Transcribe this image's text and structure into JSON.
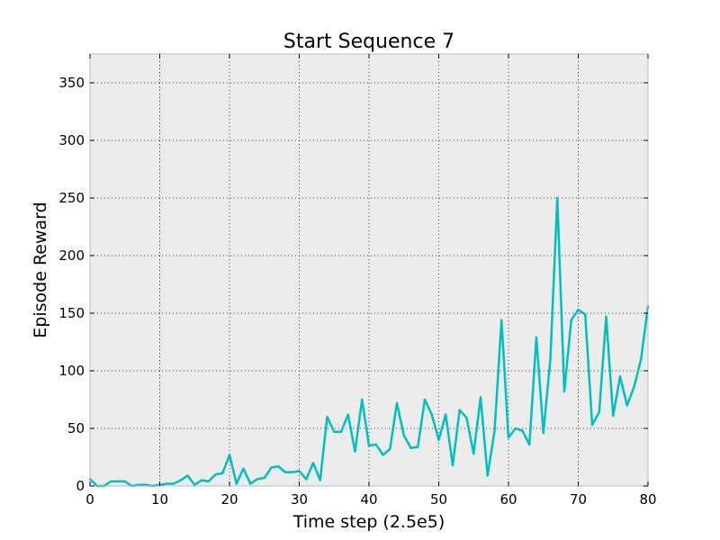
{
  "chart_data": {
    "type": "line",
    "title": "Start Sequence 7",
    "xlabel": "Time step (2.5e5)",
    "ylabel": "Episode Reward",
    "xlim": [
      0,
      80
    ],
    "ylim": [
      0,
      375
    ],
    "xticks": [
      0,
      10,
      20,
      30,
      40,
      50,
      60,
      70,
      80
    ],
    "yticks": [
      0,
      50,
      100,
      150,
      200,
      250,
      300,
      350
    ],
    "grid": true,
    "background": "#ececec",
    "series": [
      {
        "color": "#00bfbf",
        "x": [
          0,
          1,
          2,
          3,
          4,
          5,
          6,
          7,
          8,
          9,
          10,
          11,
          12,
          13,
          14,
          15,
          16,
          17,
          18,
          19,
          20,
          21,
          22,
          23,
          24,
          25,
          26,
          27,
          28,
          29,
          30,
          31,
          32,
          33,
          34,
          35,
          36,
          37,
          38,
          39,
          40,
          41,
          42,
          43,
          44,
          45,
          46,
          47,
          48,
          49,
          50,
          51,
          52,
          53,
          54,
          55,
          56,
          57,
          58,
          59,
          60,
          61,
          62,
          63,
          64,
          65,
          66,
          67,
          68,
          69,
          70,
          71,
          72,
          73,
          74,
          75,
          76,
          77,
          78,
          79,
          80
        ],
        "values": [
          6,
          0,
          0,
          4,
          4,
          4,
          0,
          1,
          1,
          0,
          1,
          2,
          2,
          5,
          9,
          1,
          5,
          4,
          10,
          11,
          27,
          2,
          15,
          2,
          6,
          7,
          16,
          17,
          12,
          12,
          13,
          6,
          20,
          5,
          60,
          47,
          47,
          62,
          30,
          75,
          35,
          36,
          27,
          32,
          72,
          44,
          33,
          34,
          75,
          62,
          40,
          62,
          18,
          66,
          59,
          28,
          77,
          9,
          48,
          144,
          42,
          50,
          48,
          36,
          129,
          46,
          110,
          250,
          82,
          144,
          153,
          149,
          53,
          64,
          147,
          61,
          95,
          70,
          86,
          110,
          156
        ]
      }
    ]
  }
}
